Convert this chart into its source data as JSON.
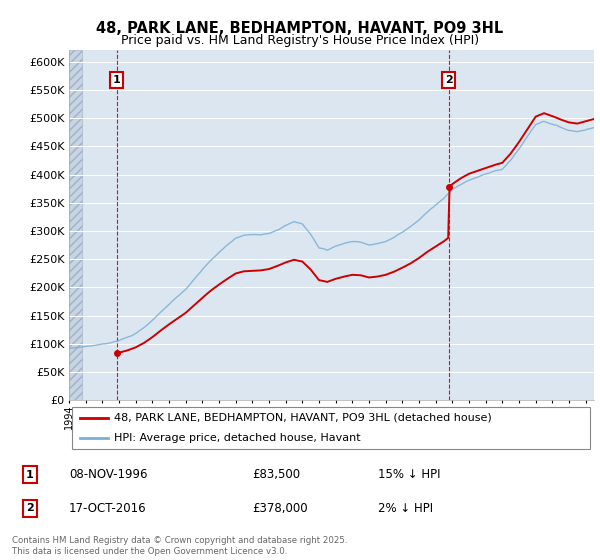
{
  "title": "48, PARK LANE, BEDHAMPTON, HAVANT, PO9 3HL",
  "subtitle": "Price paid vs. HM Land Registry's House Price Index (HPI)",
  "sale1_date": 1996.86,
  "sale1_price": 83500,
  "sale1_label": "1",
  "sale1_text": "08-NOV-1996",
  "sale1_price_str": "£83,500",
  "sale1_hpi_str": "15% ↓ HPI",
  "sale2_date": 2016.79,
  "sale2_price": 378000,
  "sale2_label": "2",
  "sale2_text": "17-OCT-2016",
  "sale2_price_str": "£378,000",
  "sale2_hpi_str": "2% ↓ HPI",
  "legend_line1": "48, PARK LANE, BEDHAMPTON, HAVANT, PO9 3HL (detached house)",
  "legend_line2": "HPI: Average price, detached house, Havant",
  "footer": "Contains HM Land Registry data © Crown copyright and database right 2025.\nThis data is licensed under the Open Government Licence v3.0.",
  "xmin": 1994,
  "xmax": 2025.5,
  "ymin": 0,
  "ymax": 620000,
  "yticks": [
    0,
    50000,
    100000,
    150000,
    200000,
    250000,
    300000,
    350000,
    400000,
    450000,
    500000,
    550000,
    600000
  ],
  "ytick_labels": [
    "£0",
    "£50K",
    "£100K",
    "£150K",
    "£200K",
    "£250K",
    "£300K",
    "£350K",
    "£400K",
    "£450K",
    "£500K",
    "£550K",
    "£600K"
  ],
  "price_color": "#cc0000",
  "hpi_color": "#7bafd4",
  "plot_bg": "#dce6f1",
  "grid_color": "#ffffff",
  "sale_vline_color": "#cc0000",
  "box_color": "#cc0000",
  "hpi_knots_x": [
    1994.0,
    1994.5,
    1995.0,
    1995.5,
    1996.0,
    1996.5,
    1997.0,
    1997.5,
    1998.0,
    1998.5,
    1999.0,
    1999.5,
    2000.0,
    2000.5,
    2001.0,
    2001.5,
    2002.0,
    2002.5,
    2003.0,
    2003.5,
    2004.0,
    2004.5,
    2005.0,
    2005.5,
    2006.0,
    2006.5,
    2007.0,
    2007.5,
    2008.0,
    2008.5,
    2009.0,
    2009.5,
    2010.0,
    2010.5,
    2011.0,
    2011.5,
    2012.0,
    2012.5,
    2013.0,
    2013.5,
    2014.0,
    2014.5,
    2015.0,
    2015.5,
    2016.0,
    2016.5,
    2017.0,
    2017.5,
    2018.0,
    2018.5,
    2019.0,
    2019.5,
    2020.0,
    2020.5,
    2021.0,
    2021.5,
    2022.0,
    2022.5,
    2023.0,
    2023.5,
    2024.0,
    2024.5,
    2025.0,
    2025.5
  ],
  "hpi_knots_y": [
    92000,
    94000,
    96000,
    98000,
    100000,
    103000,
    108000,
    113000,
    120000,
    130000,
    143000,
    158000,
    172000,
    185000,
    198000,
    215000,
    232000,
    248000,
    262000,
    275000,
    287000,
    292000,
    293000,
    294000,
    297000,
    304000,
    312000,
    318000,
    314000,
    296000,
    272000,
    268000,
    275000,
    280000,
    284000,
    283000,
    278000,
    280000,
    284000,
    291000,
    300000,
    310000,
    322000,
    336000,
    348000,
    360000,
    375000,
    385000,
    393000,
    398000,
    403000,
    408000,
    412000,
    428000,
    448000,
    470000,
    492000,
    498000,
    493000,
    487000,
    482000,
    480000,
    484000,
    488000
  ]
}
